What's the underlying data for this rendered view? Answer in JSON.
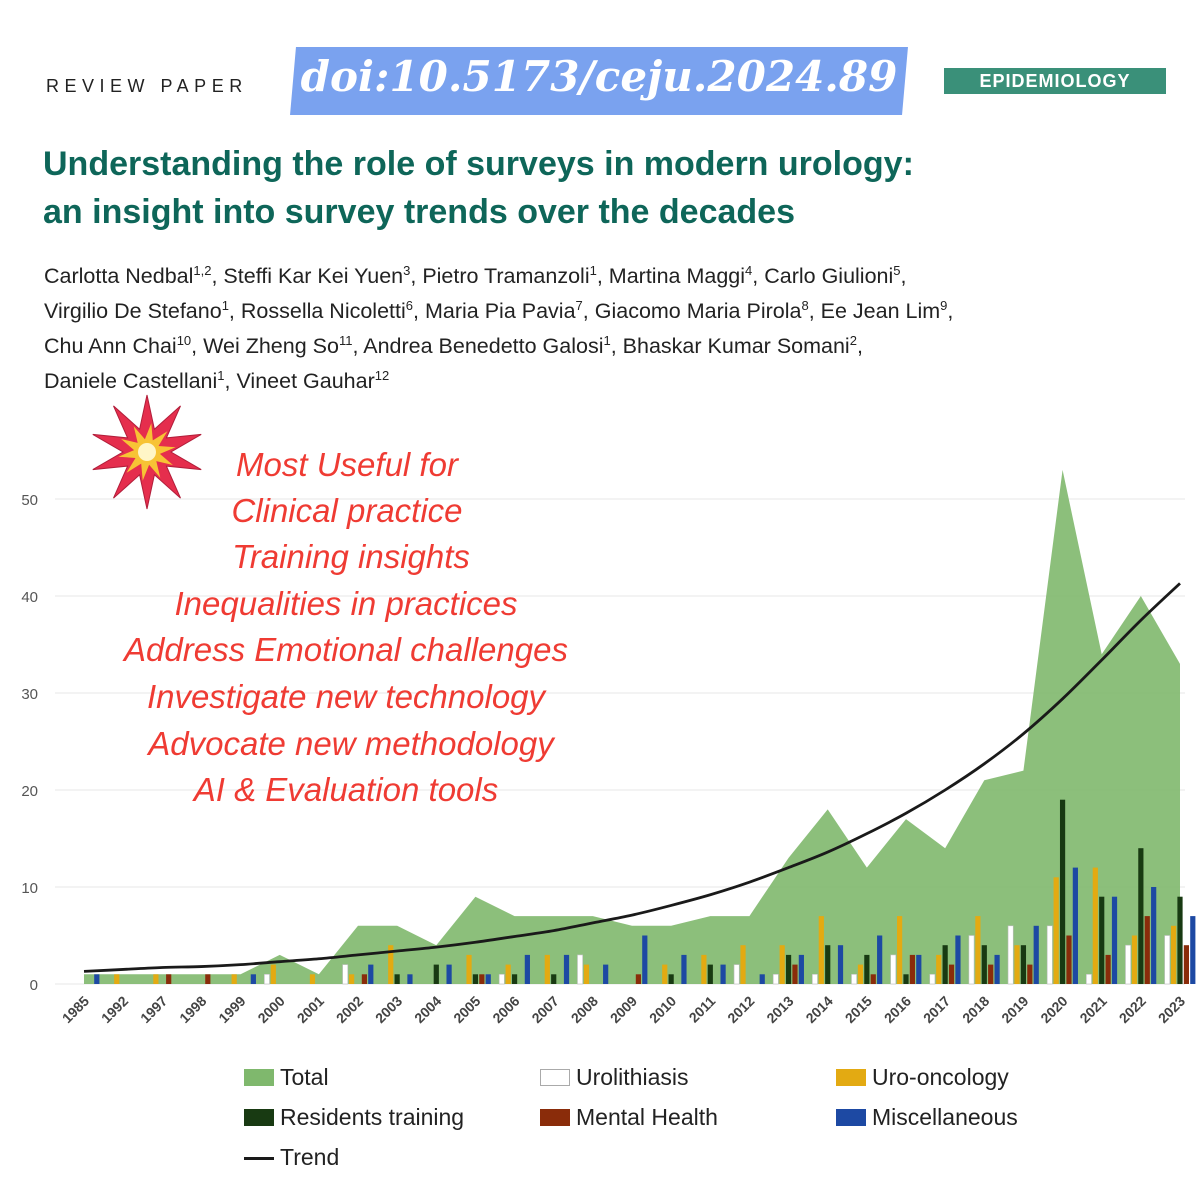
{
  "header": {
    "review_label": "REVIEW PAPER",
    "doi": "doi:10.5173/ceju.2024.89",
    "section_badge": "EPIDEMIOLOGY"
  },
  "paper": {
    "title_line1": "Understanding the role of surveys in modern urology:",
    "title_line2": "an insight into survey trends over the decades",
    "authors": [
      [
        [
          "Carlotta Nedbal",
          "1,2"
        ],
        [
          "Steffi Kar Kei Yuen",
          "3"
        ],
        [
          "Pietro Tramanzoli",
          "1"
        ],
        [
          "Martina Maggi",
          "4"
        ],
        [
          "Carlo Giulioni",
          "5"
        ]
      ],
      [
        [
          "Virgilio De Stefano",
          "1"
        ],
        [
          "Rossella Nicoletti",
          "6"
        ],
        [
          "Maria Pia Pavia",
          "7"
        ],
        [
          "Giacomo Maria Pirola",
          "8"
        ],
        [
          "Ee Jean Lim",
          "9"
        ]
      ],
      [
        [
          "Chu Ann Chai",
          "10"
        ],
        [
          "Wei Zheng So",
          "11"
        ],
        [
          "Andrea Benedetto Galosi",
          "1"
        ],
        [
          "Bhaskar Kumar Somani",
          "2"
        ]
      ],
      [
        [
          "Daniele Castellani",
          "1"
        ],
        [
          "Vineet Gauhar",
          "12"
        ]
      ]
    ]
  },
  "annotation": {
    "lines": [
      "Most Useful for",
      "Clinical practice",
      "Training insights",
      "Inequalities in practices",
      "Address Emotional challenges",
      "Investigate new technology",
      "Advocate new methodology",
      "AI &  Evaluation tools"
    ],
    "icon": "collision-icon"
  },
  "chart_data": {
    "type": "area",
    "ylim": [
      0,
      55
    ],
    "yticks": [
      0,
      10,
      20,
      30,
      40,
      50
    ],
    "categories": [
      "1985",
      "1992",
      "1997",
      "1998",
      "1999",
      "2000",
      "2001",
      "2002",
      "2003",
      "2004",
      "2005",
      "2006",
      "2007",
      "2008",
      "2009",
      "2010",
      "2011",
      "2012",
      "2013",
      "2014",
      "2015",
      "2016",
      "2017",
      "2018",
      "2019",
      "2020",
      "2021",
      "2022",
      "2023"
    ],
    "series": [
      {
        "name": "Total",
        "kind": "area",
        "color": "#7fb86d",
        "values": [
          1,
          1,
          1,
          1,
          1,
          3,
          1,
          6,
          6,
          4,
          9,
          7,
          7,
          7,
          6,
          6,
          7,
          7,
          13,
          18,
          12,
          17,
          14,
          21,
          22,
          53,
          34,
          40,
          33
        ]
      },
      {
        "name": "Urolithiasis",
        "kind": "bar",
        "color": "#ffffff",
        "values": [
          0,
          0,
          0,
          0,
          0,
          1,
          0,
          2,
          0,
          0,
          0,
          1,
          0,
          3,
          0,
          0,
          0,
          2,
          1,
          1,
          1,
          3,
          1,
          5,
          6,
          6,
          1,
          4,
          5
        ]
      },
      {
        "name": "Uro-oncology",
        "kind": "bar",
        "color": "#e3aa12",
        "values": [
          0,
          1,
          1,
          0,
          1,
          2,
          1,
          1,
          4,
          0,
          3,
          2,
          3,
          2,
          0,
          2,
          3,
          4,
          4,
          7,
          2,
          7,
          3,
          7,
          4,
          11,
          12,
          5,
          6
        ]
      },
      {
        "name": "Residents training",
        "kind": "bar",
        "color": "#183a12",
        "values": [
          0,
          0,
          0,
          0,
          0,
          0,
          0,
          0,
          1,
          2,
          1,
          1,
          1,
          0,
          0,
          1,
          2,
          0,
          3,
          4,
          3,
          1,
          4,
          4,
          4,
          19,
          9,
          14,
          9
        ]
      },
      {
        "name": "Mental Health",
        "kind": "bar",
        "color": "#8a2c0a",
        "values": [
          0,
          0,
          1,
          1,
          0,
          0,
          0,
          1,
          0,
          0,
          1,
          0,
          0,
          0,
          1,
          0,
          0,
          0,
          2,
          0,
          1,
          3,
          2,
          2,
          2,
          5,
          3,
          7,
          4
        ]
      },
      {
        "name": "Miscellaneous",
        "kind": "bar",
        "color": "#1d49a3",
        "values": [
          1,
          0,
          0,
          0,
          1,
          0,
          0,
          2,
          1,
          2,
          1,
          3,
          3,
          2,
          5,
          3,
          2,
          1,
          3,
          4,
          5,
          3,
          5,
          3,
          6,
          12,
          9,
          10,
          7
        ]
      },
      {
        "name": "Trend",
        "kind": "line",
        "color": "#1a1a1a",
        "values": [
          1.3,
          1.5,
          1.7,
          1.8,
          2.0,
          2.3,
          2.6,
          3.0,
          3.4,
          3.8,
          4.3,
          4.9,
          5.5,
          6.3,
          7.1,
          8.1,
          9.2,
          10.5,
          12.0,
          13.6,
          15.5,
          17.6,
          20.0,
          22.7,
          25.8,
          29.4,
          33.4,
          37.5,
          41.3
        ]
      }
    ],
    "legend": [
      {
        "label": "Total",
        "swatch": "#7fb86d"
      },
      {
        "label": "Urolithiasis",
        "swatch": "#ffffff"
      },
      {
        "label": "Uro-oncology",
        "swatch": "#e3aa12"
      },
      {
        "label": "Residents training",
        "swatch": "#183a12"
      },
      {
        "label": "Mental Health",
        "swatch": "#8a2c0a"
      },
      {
        "label": "Miscellaneous",
        "swatch": "#1d49a3"
      },
      {
        "label": "Trend",
        "swatch": "#1a1a1a"
      }
    ]
  }
}
